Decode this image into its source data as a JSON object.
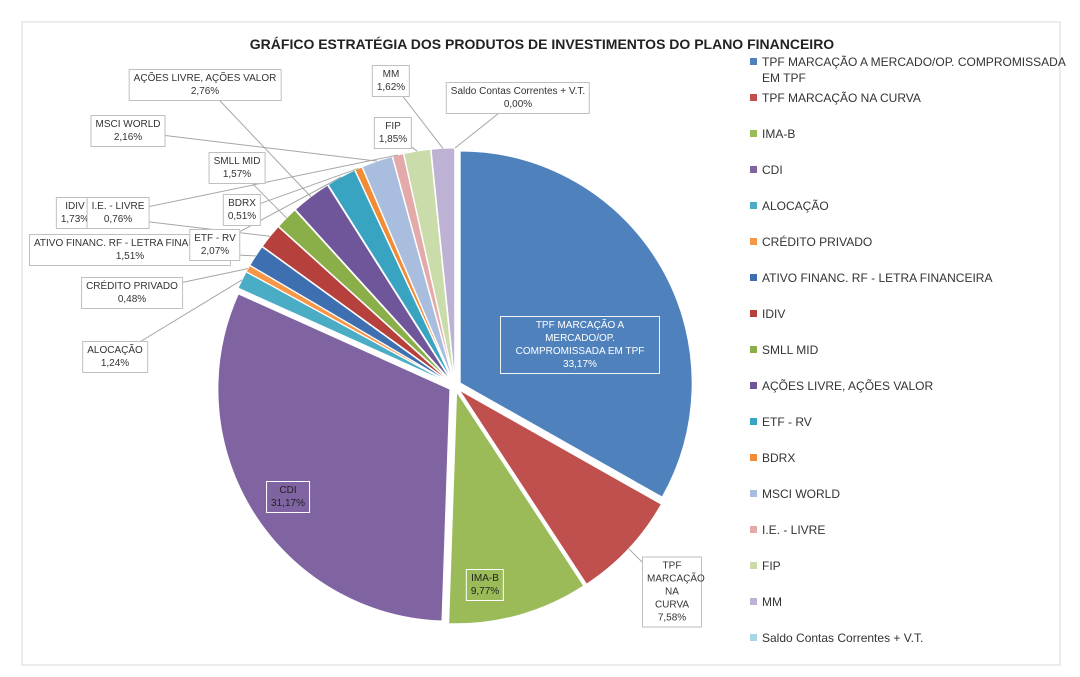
{
  "chart_data": {
    "type": "pie",
    "title": "GRÁFICO ESTRATÉGIA DOS PRODUTOS DE INVESTIMENTOS DO PLANO FINANCEIRO",
    "categories": [
      "TPF MARCAÇÃO A MERCADO/OP. COMPROMISSADA EM TPF",
      "TPF MARCAÇÃO NA CURVA",
      "IMA-B",
      "CDI",
      "ALOCAÇÃO",
      "CRÉDITO PRIVADO",
      "ATIVO FINANC. RF - LETRA FINANCEIRA",
      "IDIV",
      "SMLL MID",
      "AÇÕES LIVRE, AÇÕES VALOR",
      "ETF - RV",
      "BDRX",
      "MSCI WORLD",
      "I.E. - LIVRE",
      "FIP",
      "MM",
      "Saldo Contas Correntes + V.T."
    ],
    "values": [
      33.17,
      7.58,
      9.77,
      31.17,
      1.24,
      0.48,
      1.51,
      1.73,
      1.57,
      2.76,
      2.07,
      0.51,
      2.16,
      0.76,
      1.85,
      1.62,
      0.0
    ],
    "value_labels": [
      "33,17%",
      "7,58%",
      "9,77%",
      "31,17%",
      "1,24%",
      "0,48%",
      "1,51%",
      "1,73%",
      "1,57%",
      "2,76%",
      "2,07%",
      "0,51%",
      "2,16%",
      "0,76%",
      "1,85%",
      "1,62%",
      "0,00%"
    ],
    "colors": [
      "#4f81bd",
      "#c0504d",
      "#9bbb59",
      "#8064a2",
      "#4bacc6",
      "#f79646",
      "#3e6fb0",
      "#b6403c",
      "#8aae48",
      "#6f559a",
      "#38a4c2",
      "#f28b35",
      "#a9bddf",
      "#e4aaa9",
      "#c9dca9",
      "#bdb2d3",
      "#a7d7e6"
    ],
    "legend": "right"
  }
}
